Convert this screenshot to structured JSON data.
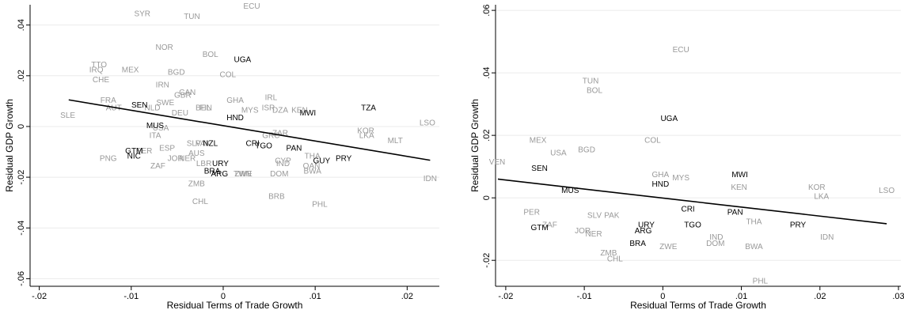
{
  "chart_data": [
    {
      "type": "scatter",
      "title": "",
      "xlabel": "Residual Terms of Trade Growth",
      "ylabel": "Residual GDP Growth",
      "xlim": [
        -0.021,
        0.0235
      ],
      "ylim": [
        -0.063,
        0.048
      ],
      "x_ticks": [
        {
          "v": -0.02,
          "label": "-.02"
        },
        {
          "v": -0.01,
          "label": "-.01"
        },
        {
          "v": 0,
          "label": "0"
        },
        {
          "v": 0.01,
          "label": ".01"
        },
        {
          "v": 0.02,
          "label": ".02"
        }
      ],
      "y_ticks": [
        {
          "v": -0.06,
          "label": "-.06"
        },
        {
          "v": -0.04,
          "label": "-.04"
        },
        {
          "v": -0.02,
          "label": "-.02"
        },
        {
          "v": 0,
          "label": "0"
        },
        {
          "v": 0.02,
          "label": ".02"
        },
        {
          "v": 0.04,
          "label": ".04"
        }
      ],
      "grid": true,
      "fit_line": {
        "x": [
          -0.0168,
          0.0225
        ],
        "y": [
          0.0105,
          -0.0133
        ]
      },
      "series": [
        {
          "color": "#999999",
          "points": [
            {
              "label": "SYR",
              "x": -0.0088,
              "y": 0.0445
            },
            {
              "label": "TUN",
              "x": -0.0034,
              "y": 0.0435
            },
            {
              "label": "ECU",
              "x": 0.0031,
              "y": 0.0475
            },
            {
              "label": "NOR",
              "x": -0.0064,
              "y": 0.0313
            },
            {
              "label": "BOL",
              "x": -0.0014,
              "y": 0.0285
            },
            {
              "label": "TTO",
              "x": -0.0135,
              "y": 0.0245
            },
            {
              "label": "IRQ",
              "x": -0.0138,
              "y": 0.0225
            },
            {
              "label": "MEX",
              "x": -0.0101,
              "y": 0.0225
            },
            {
              "label": "BGD",
              "x": -0.0051,
              "y": 0.0215
            },
            {
              "label": "COL",
              "x": 0.0005,
              "y": 0.0205
            },
            {
              "label": "CHE",
              "x": -0.0133,
              "y": 0.0185
            },
            {
              "label": "IRN",
              "x": -0.0066,
              "y": 0.0165
            },
            {
              "label": "CAN",
              "x": -0.0039,
              "y": 0.0135
            },
            {
              "label": "GBR",
              "x": -0.0044,
              "y": 0.0125
            },
            {
              "label": "FRA",
              "x": -0.0125,
              "y": 0.0105
            },
            {
              "label": "SWE",
              "x": -0.0063,
              "y": 0.0095
            },
            {
              "label": "GHA",
              "x": 0.0013,
              "y": 0.0105
            },
            {
              "label": "IRL",
              "x": 0.0052,
              "y": 0.0115
            },
            {
              "label": "AUT",
              "x": -0.0119,
              "y": 0.0075
            },
            {
              "label": "NLD",
              "x": -0.0077,
              "y": 0.0075
            },
            {
              "label": "BEL",
              "x": -0.0022,
              "y": 0.0075
            },
            {
              "label": "FIN",
              "x": -0.0019,
              "y": 0.0075
            },
            {
              "label": "MYS",
              "x": 0.0029,
              "y": 0.0065
            },
            {
              "label": "ISR",
              "x": 0.0049,
              "y": 0.0075
            },
            {
              "label": "DZA",
              "x": 0.0062,
              "y": 0.0065
            },
            {
              "label": "KEN",
              "x": 0.0083,
              "y": 0.0065
            },
            {
              "label": "SLE",
              "x": -0.0169,
              "y": 0.0045
            },
            {
              "label": "DEU",
              "x": -0.0047,
              "y": 0.0055
            },
            {
              "label": "KOR",
              "x": 0.0155,
              "y": -0.0015
            },
            {
              "label": "LSO",
              "x": 0.0222,
              "y": 0.0015
            },
            {
              "label": "USA",
              "x": -0.0068,
              "y": -0.0005
            },
            {
              "label": "LKA",
              "x": 0.0156,
              "y": -0.0035
            },
            {
              "label": "MLT",
              "x": 0.0187,
              "y": -0.0055
            },
            {
              "label": "GRC",
              "x": 0.0052,
              "y": -0.0035
            },
            {
              "label": "ZAR",
              "x": 0.0062,
              "y": -0.0025
            },
            {
              "label": "ITA",
              "x": -0.0074,
              "y": -0.0035
            },
            {
              "label": "SLV",
              "x": -0.0032,
              "y": -0.0065
            },
            {
              "label": "PAK",
              "x": -0.0022,
              "y": -0.0065
            },
            {
              "label": "PER",
              "x": -0.0086,
              "y": -0.0095
            },
            {
              "label": "ESP",
              "x": -0.0061,
              "y": -0.0085
            },
            {
              "label": "AUS",
              "x": -0.0029,
              "y": -0.0105
            },
            {
              "label": "THA",
              "x": 0.0097,
              "y": -0.0115
            },
            {
              "label": "PNG",
              "x": -0.0125,
              "y": -0.0125
            },
            {
              "label": "JOR",
              "x": -0.0052,
              "y": -0.0125
            },
            {
              "label": "NER",
              "x": -0.0039,
              "y": -0.0125
            },
            {
              "label": "CYP",
              "x": 0.0065,
              "y": -0.0135
            },
            {
              "label": "OAN",
              "x": 0.0096,
              "y": -0.0155
            },
            {
              "label": "ZAF",
              "x": -0.0071,
              "y": -0.0155
            },
            {
              "label": "LBR",
              "x": -0.0021,
              "y": -0.0145
            },
            {
              "label": "IND",
              "x": 0.0065,
              "y": -0.0145
            },
            {
              "label": "ZWE",
              "x": 0.0022,
              "y": -0.0185
            },
            {
              "label": "TWN",
              "x": 0.0021,
              "y": -0.0185
            },
            {
              "label": "DOM",
              "x": 0.0061,
              "y": -0.0185
            },
            {
              "label": "BWA",
              "x": 0.0097,
              "y": -0.0175
            },
            {
              "label": "IDN",
              "x": 0.0225,
              "y": -0.0205
            },
            {
              "label": "ZMB",
              "x": -0.0029,
              "y": -0.0225
            },
            {
              "label": "BRB",
              "x": 0.0058,
              "y": -0.0275
            },
            {
              "label": "CHL",
              "x": -0.0025,
              "y": -0.0295
            },
            {
              "label": "PHL",
              "x": 0.0105,
              "y": -0.0305
            }
          ]
        },
        {
          "color": "#000000",
          "points": [
            {
              "label": "UGA",
              "x": 0.0021,
              "y": 0.0265
            },
            {
              "label": "TZA",
              "x": 0.0158,
              "y": 0.0075
            },
            {
              "label": "MWI",
              "x": 0.0092,
              "y": 0.0055
            },
            {
              "label": "SEN",
              "x": -0.0091,
              "y": 0.0085
            },
            {
              "label": "HND",
              "x": 0.0013,
              "y": 0.0035
            },
            {
              "label": "MUS",
              "x": -0.0074,
              "y": 0.0005
            },
            {
              "label": "NZL",
              "x": -0.0014,
              "y": -0.0065
            },
            {
              "label": "CRI",
              "x": 0.0032,
              "y": -0.0065
            },
            {
              "label": "TGO",
              "x": 0.0044,
              "y": -0.0075
            },
            {
              "label": "PAN",
              "x": 0.0077,
              "y": -0.0085
            },
            {
              "label": "GTM",
              "x": -0.0097,
              "y": -0.0095
            },
            {
              "label": "NIC",
              "x": -0.0097,
              "y": -0.0115
            },
            {
              "label": "PRY",
              "x": 0.0131,
              "y": -0.0125
            },
            {
              "label": "GUY",
              "x": 0.0107,
              "y": -0.0135
            },
            {
              "label": "URY",
              "x": -0.0003,
              "y": -0.0145
            },
            {
              "label": "BRA",
              "x": -0.0012,
              "y": -0.0175
            },
            {
              "label": "ARG",
              "x": -0.0004,
              "y": -0.0185
            }
          ]
        }
      ]
    },
    {
      "type": "scatter",
      "title": "",
      "xlabel": "Residual Terms of Trade Growth",
      "ylabel": "Residual GDP Growth",
      "xlim": [
        -0.0213,
        0.0303
      ],
      "ylim": [
        -0.0283,
        0.0618
      ],
      "x_ticks": [
        {
          "v": -0.02,
          "label": "-.02"
        },
        {
          "v": -0.01,
          "label": "-.01"
        },
        {
          "v": 0,
          "label": "0"
        },
        {
          "v": 0.01,
          "label": ".01"
        },
        {
          "v": 0.02,
          "label": ".02"
        },
        {
          "v": 0.03,
          "label": ".03"
        }
      ],
      "y_ticks": [
        {
          "v": -0.02,
          "label": "-.02"
        },
        {
          "v": 0,
          "label": "0"
        },
        {
          "v": 0.02,
          "label": ".02"
        },
        {
          "v": 0.04,
          "label": ".04"
        },
        {
          "v": 0.06,
          "label": ".06"
        }
      ],
      "grid": true,
      "fit_line": {
        "x": [
          -0.021,
          0.0285
        ],
        "y": [
          0.006,
          -0.0083
        ]
      },
      "series": [
        {
          "color": "#999999",
          "points": [
            {
              "label": "ECU",
              "x": 0.0023,
              "y": 0.0475
            },
            {
              "label": "TUN",
              "x": -0.0092,
              "y": 0.0375
            },
            {
              "label": "BOL",
              "x": -0.0087,
              "y": 0.0345
            },
            {
              "label": "MEX",
              "x": -0.0159,
              "y": 0.0185
            },
            {
              "label": "COL",
              "x": -0.0013,
              "y": 0.0185
            },
            {
              "label": "BGD",
              "x": -0.0097,
              "y": 0.0155
            },
            {
              "label": "USA",
              "x": -0.0133,
              "y": 0.0145
            },
            {
              "label": "VEN",
              "x": -0.0211,
              "y": 0.0115
            },
            {
              "label": "GHA",
              "x": -0.0003,
              "y": 0.0075
            },
            {
              "label": "MYS",
              "x": 0.0023,
              "y": 0.0065
            },
            {
              "label": "KEN",
              "x": 0.0097,
              "y": 0.0035
            },
            {
              "label": "KOR",
              "x": 0.0196,
              "y": 0.0035
            },
            {
              "label": "LSO",
              "x": 0.0285,
              "y": 0.0025
            },
            {
              "label": "LKA",
              "x": 0.0202,
              "y": 0.0005
            },
            {
              "label": "PER",
              "x": -0.0167,
              "y": -0.0045
            },
            {
              "label": "SLV",
              "x": -0.0087,
              "y": -0.0055
            },
            {
              "label": "PAK",
              "x": -0.0065,
              "y": -0.0055
            },
            {
              "label": "ZAF",
              "x": -0.0144,
              "y": -0.0085
            },
            {
              "label": "THA",
              "x": 0.0116,
              "y": -0.0075
            },
            {
              "label": "JOR",
              "x": -0.0102,
              "y": -0.0105
            },
            {
              "label": "NER",
              "x": -0.0088,
              "y": -0.0115
            },
            {
              "label": "IDN",
              "x": 0.0209,
              "y": -0.0125
            },
            {
              "label": "IND",
              "x": 0.0068,
              "y": -0.0125
            },
            {
              "label": "DOM",
              "x": 0.0067,
              "y": -0.0145
            },
            {
              "label": "BWA",
              "x": 0.0116,
              "y": -0.0155
            },
            {
              "label": "ZWE",
              "x": 0.0007,
              "y": -0.0155
            },
            {
              "label": "ZMB",
              "x": -0.0069,
              "y": -0.0175
            },
            {
              "label": "CHL",
              "x": -0.0061,
              "y": -0.0195
            },
            {
              "label": "PHL",
              "x": 0.0124,
              "y": -0.0265
            }
          ]
        },
        {
          "color": "#000000",
          "points": [
            {
              "label": "UGA",
              "x": 0.0008,
              "y": 0.0255
            },
            {
              "label": "SEN",
              "x": -0.0157,
              "y": 0.0095
            },
            {
              "label": "MWI",
              "x": 0.0098,
              "y": 0.0075
            },
            {
              "label": "HND",
              "x": -0.0003,
              "y": 0.0045
            },
            {
              "label": "MUS",
              "x": -0.0118,
              "y": 0.0025
            },
            {
              "label": "CRI",
              "x": 0.0032,
              "y": -0.0035
            },
            {
              "label": "PAN",
              "x": 0.0092,
              "y": -0.0045
            },
            {
              "label": "GTM",
              "x": -0.0157,
              "y": -0.0095
            },
            {
              "label": "URY",
              "x": -0.0021,
              "y": -0.0085
            },
            {
              "label": "TGO",
              "x": 0.0038,
              "y": -0.0085
            },
            {
              "label": "PRY",
              "x": 0.0172,
              "y": -0.0085
            },
            {
              "label": "ARG",
              "x": -0.0025,
              "y": -0.0105
            },
            {
              "label": "BRA",
              "x": -0.0032,
              "y": -0.0145
            }
          ]
        }
      ]
    }
  ]
}
